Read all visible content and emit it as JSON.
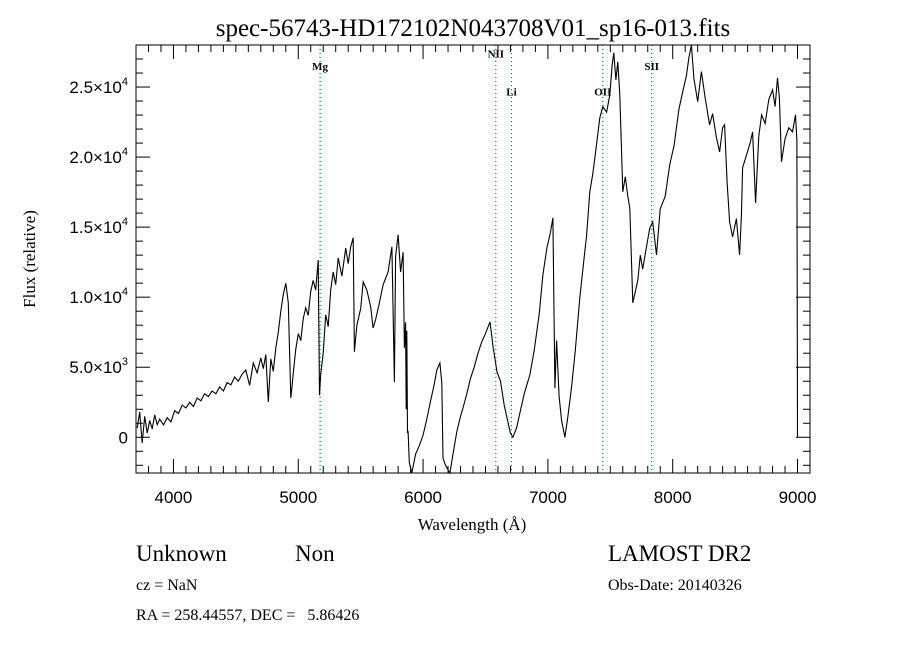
{
  "chart_data": {
    "type": "line",
    "title": "spec-56743-HD172102N043708V01_sp16-013.fits",
    "xlabel": "Wavelength (Å)",
    "ylabel": "Flux (relative)",
    "xlim": [
      3700,
      9100
    ],
    "ylim": [
      -2550,
      28000
    ],
    "grid": false,
    "xticks": [
      4000,
      5000,
      6000,
      7000,
      8000,
      9000
    ],
    "xtick_labels": [
      "4000",
      "5000",
      "6000",
      "7000",
      "8000",
      "9000"
    ],
    "yticks": [
      {
        "value": 0,
        "mantissa": "0",
        "exp": ""
      },
      {
        "value": 5000,
        "mantissa": "5.0×10",
        "exp": "3"
      },
      {
        "value": 10000,
        "mantissa": "1.0×10",
        "exp": "4"
      },
      {
        "value": 15000,
        "mantissa": "1.5×10",
        "exp": "4"
      },
      {
        "value": 20000,
        "mantissa": "2.0×10",
        "exp": "4"
      },
      {
        "value": 25000,
        "mantissa": "2.5×10",
        "exp": "4"
      }
    ],
    "line_color": "#000000",
    "marker_color": "#cc0000",
    "spectral_lines": [
      {
        "label": "Mg",
        "wavelength": 5175,
        "label_flux": 26200
      },
      {
        "label": "NII",
        "wavelength": 6583,
        "label_flux": 27100
      },
      {
        "label": "Li",
        "wavelength": 6708,
        "label_flux": 24400
      },
      {
        "label": "OII",
        "wavelength": 7440,
        "label_flux": 24400
      },
      {
        "label": "SII",
        "wavelength": 7832,
        "label_flux": 26200
      }
    ],
    "series": [
      {
        "name": "spectrum",
        "x": [
          3710,
          3730,
          3750,
          3770,
          3790,
          3810,
          3830,
          3850,
          3870,
          3890,
          3920,
          3950,
          3980,
          4010,
          4040,
          4070,
          4100,
          4130,
          4160,
          4190,
          4220,
          4250,
          4280,
          4310,
          4340,
          4370,
          4400,
          4430,
          4460,
          4490,
          4520,
          4550,
          4580,
          4610,
          4640,
          4670,
          4700,
          4720,
          4740,
          4760,
          4780,
          4800,
          4820,
          4840,
          4860,
          4880,
          4900,
          4920,
          4940,
          4950,
          4960,
          4980,
          5000,
          5020,
          5040,
          5060,
          5080,
          5100,
          5120,
          5140,
          5160,
          5170,
          5180,
          5200,
          5220,
          5240,
          5260,
          5280,
          5300,
          5320,
          5350,
          5380,
          5400,
          5420,
          5440,
          5450,
          5470,
          5500,
          5520,
          5550,
          5580,
          5600,
          5620,
          5650,
          5680,
          5720,
          5750,
          5770,
          5780,
          5800,
          5820,
          5840,
          5850,
          5860,
          5865,
          5870,
          5875,
          5880,
          5890,
          5910,
          5940,
          5970,
          6000,
          6030,
          6060,
          6090,
          6110,
          6135,
          6150,
          6160,
          6180,
          6215,
          6240,
          6270,
          6300,
          6320,
          6350,
          6380,
          6410,
          6440,
          6470,
          6500,
          6536,
          6560,
          6592,
          6620,
          6650,
          6680,
          6700,
          6720,
          6750,
          6780,
          6810,
          6856,
          6890,
          6930,
          6960,
          6992,
          7020,
          7040,
          7056,
          7070,
          7090,
          7110,
          7136,
          7160,
          7190,
          7220,
          7256,
          7290,
          7310,
          7336,
          7360,
          7380,
          7416,
          7440,
          7470,
          7496,
          7515,
          7528,
          7545,
          7560,
          7576,
          7600,
          7620,
          7640,
          7656,
          7680,
          7700,
          7720,
          7740,
          7760,
          7790,
          7816,
          7840,
          7870,
          7900,
          7940,
          7976,
          8010,
          8050,
          8080,
          8110,
          8130,
          8150,
          8170,
          8200,
          8230,
          8260,
          8296,
          8320,
          8350,
          8376,
          8400,
          8416,
          8436,
          8456,
          8480,
          8510,
          8536,
          8550,
          8560,
          8590,
          8620,
          8640,
          8664,
          8690,
          8712,
          8740,
          8770,
          8800,
          8820,
          8840,
          8855,
          8872,
          8900,
          8930,
          8960,
          8984,
          8995,
          9000
        ],
        "y": [
          660,
          1800,
          -400,
          1500,
          300,
          1200,
          600,
          1600,
          900,
          1300,
          880,
          1400,
          1100,
          1900,
          1700,
          2300,
          2100,
          2500,
          2200,
          2800,
          2600,
          3100,
          2900,
          3300,
          3100,
          3600,
          3300,
          3900,
          3740,
          4300,
          4000,
          4500,
          4800,
          3700,
          5300,
          4600,
          5660,
          4900,
          5900,
          2520,
          5600,
          4700,
          6380,
          7500,
          9000,
          10200,
          11000,
          9600,
          2800,
          3600,
          4600,
          6300,
          7400,
          6900,
          8500,
          9240,
          8700,
          10400,
          11200,
          10500,
          12660,
          3000,
          4500,
          6000,
          8740,
          7900,
          10500,
          11800,
          10900,
          12800,
          11500,
          13500,
          12400,
          13600,
          14240,
          6100,
          8000,
          9200,
          11090,
          10500,
          9300,
          7800,
          8400,
          9600,
          10880,
          11800,
          13600,
          3950,
          12900,
          14450,
          11800,
          13200,
          6380,
          8200,
          2000,
          7600,
          300,
          432,
          -1800,
          -2550,
          -1200,
          -600,
          160,
          1300,
          2600,
          3800,
          4800,
          5300,
          3900,
          -1480,
          -2000,
          -2550,
          -1200,
          400,
          1500,
          2090,
          3100,
          4200,
          5000,
          6000,
          6800,
          7400,
          8240,
          6500,
          4660,
          4000,
          2300,
          1100,
          300,
          0,
          700,
          1900,
          3100,
          4460,
          6200,
          8800,
          11600,
          13520,
          14600,
          15660,
          3520,
          6900,
          2900,
          1200,
          0,
          1500,
          3600,
          6200,
          9950,
          12800,
          14400,
          17520,
          18800,
          20200,
          22800,
          23600,
          23200,
          24440,
          26600,
          27450,
          25500,
          26800,
          24440,
          17520,
          18600,
          17200,
          16370,
          9590,
          10400,
          11200,
          13000,
          12000,
          13600,
          14900,
          15380,
          13020,
          16300,
          17200,
          19450,
          20800,
          23400,
          24660,
          25800,
          27100,
          28000,
          25600,
          23950,
          26100,
          24200,
          22300,
          23100,
          21400,
          20370,
          22100,
          22300,
          18200,
          15380,
          14300,
          15600,
          13020,
          15800,
          19240,
          20100,
          21000,
          21800,
          16730,
          21500,
          23020,
          22400,
          24100,
          24800,
          23600,
          25660,
          24200,
          19660,
          21300,
          22100,
          21800,
          23020,
          21200,
          0
        ]
      }
    ],
    "footer": {
      "object_class": "Unknown",
      "subclass": "Non",
      "cz": "cz = NaN",
      "coords": "RA = 258.44557, DEC =   5.86426",
      "survey": "LAMOST DR2",
      "obs_date": "Obs-Date: 20140326"
    }
  }
}
